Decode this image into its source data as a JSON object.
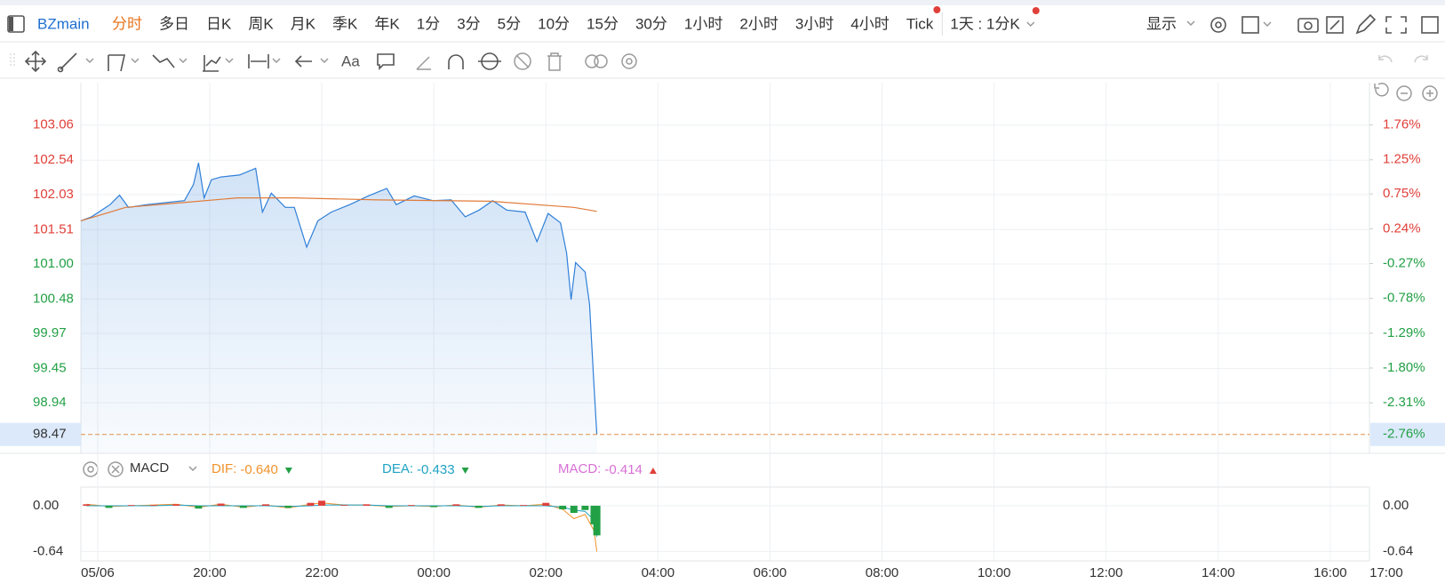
{
  "toolbar": {
    "symbol": "BZmain",
    "periods": [
      "分时",
      "多日",
      "日K",
      "周K",
      "月K",
      "季K",
      "年K",
      "1分",
      "3分",
      "5分",
      "10分",
      "15分",
      "30分",
      "1小时",
      "2小时",
      "3小时",
      "4小时",
      "Tick"
    ],
    "active_index": 0,
    "active_color": "#e8741c",
    "range": "1天 : 1分K",
    "display": "显示"
  },
  "drawing_tools": {
    "text_tool": "Aa"
  },
  "chart_data": [
    {
      "type": "line",
      "series": [
        {
          "color": "#2f7fd8",
          "area": true,
          "x": [
            -0.3,
            -0.11,
            0.22,
            0.39,
            0.55,
            0.88,
            1.21,
            1.55,
            1.71,
            1.8,
            1.9,
            2.03,
            2.2,
            2.53,
            2.82,
            2.94,
            3.1,
            3.35,
            3.51,
            3.73,
            3.93,
            4.17,
            4.5,
            4.83,
            5.16,
            5.33,
            5.65,
            5.98,
            6.31,
            6.56,
            6.81,
            7.05,
            7.3,
            7.63,
            7.84,
            8.04,
            8.26,
            8.37,
            8.45,
            8.53,
            8.7,
            8.78,
            8.86,
            8.91
          ],
          "values": [
            101.64,
            101.7,
            101.88,
            102.02,
            101.84,
            101.88,
            101.91,
            101.94,
            102.18,
            102.5,
            101.98,
            102.25,
            102.29,
            102.32,
            102.42,
            101.77,
            102.05,
            101.84,
            101.84,
            101.25,
            101.64,
            101.77,
            101.88,
            102.01,
            102.12,
            101.88,
            102.01,
            101.94,
            101.95,
            101.7,
            101.8,
            101.94,
            101.8,
            101.77,
            101.33,
            101.75,
            101.61,
            101.16,
            100.47,
            101.02,
            100.88,
            100.4,
            99.17,
            98.47
          ]
        },
        {
          "color": "#e07b39",
          "area": false,
          "x": [
            -0.3,
            0.5,
            1.5,
            2.5,
            3.5,
            5,
            7,
            8.5,
            8.91
          ],
          "values": [
            101.64,
            101.84,
            101.91,
            101.98,
            101.98,
            101.95,
            101.93,
            101.84,
            101.78
          ]
        }
      ],
      "xlim": [
        -0.3,
        22.7
      ],
      "xticks": [
        {
          "value": 0,
          "label": "05/06"
        },
        {
          "value": 2,
          "label": "20:00"
        },
        {
          "value": 4,
          "label": "22:00"
        },
        {
          "value": 6,
          "label": "00:00"
        },
        {
          "value": 8,
          "label": "02:00"
        },
        {
          "value": 10,
          "label": "04:00"
        },
        {
          "value": 12,
          "label": "06:00"
        },
        {
          "value": 14,
          "label": "08:00"
        },
        {
          "value": 16,
          "label": "10:00"
        },
        {
          "value": 18,
          "label": "12:00"
        },
        {
          "value": 20,
          "label": "14:00"
        },
        {
          "value": 22,
          "label": "16:00"
        },
        {
          "value": 23,
          "label": "17:00"
        }
      ],
      "ylim": [
        98.19,
        103.69
      ],
      "yticks": [
        103.06,
        102.54,
        102.03,
        {
          "value": 101.51,
          "label": "101.51"
        },
        {
          "value": 101,
          "label": "101.00"
        },
        100.48,
        99.97,
        99.45,
        98.94
      ],
      "y2lim": [
        -3.05,
        2.38
      ],
      "y2ticks": [
        {
          "value": 1.76,
          "label": "1.76%"
        },
        {
          "value": 1.25,
          "label": "1.25%"
        },
        {
          "value": 0.75,
          "label": "0.75%"
        },
        {
          "value": 0.24,
          "label": "0.24%"
        },
        {
          "value": -0.27,
          "label": "-0.27%"
        },
        {
          "value": -0.78,
          "label": "-0.78%"
        },
        {
          "value": -1.29,
          "label": "-1.29%"
        },
        {
          "value": -1.8,
          "label": "-1.80%"
        },
        {
          "value": -2.31,
          "label": "-2.31%"
        }
      ],
      "last": {
        "value": 98.47,
        "percent": {
          "value": -2.76,
          "label": "-2.76%"
        }
      },
      "up_color": "#e0403a",
      "down_color": "#22a045",
      "grid": true
    },
    {
      "type": "macd",
      "title": "MACD",
      "x": [
        -0.2,
        0.2,
        0.6,
        1.0,
        1.4,
        1.8,
        2.2,
        2.6,
        3.0,
        3.4,
        3.8,
        4.0,
        4.4,
        4.8,
        5.2,
        5.6,
        6.0,
        6.4,
        6.8,
        7.2,
        7.6,
        8.0,
        8.3,
        8.5,
        8.7,
        8.86,
        8.91
      ],
      "series": [
        {
          "name": "DIF:",
          "color": "#f0932b",
          "style": "line",
          "trend": "down",
          "last": {
            "value": -0.64,
            "label": "-0.640"
          },
          "values": [
            0.02,
            -0.01,
            0.0,
            0.01,
            0.02,
            -0.02,
            0.02,
            -0.02,
            0.01,
            -0.03,
            0.02,
            0.04,
            0.01,
            0.01,
            -0.01,
            0.0,
            -0.01,
            0.01,
            -0.02,
            0.01,
            0.0,
            0.02,
            -0.05,
            -0.18,
            -0.12,
            -0.35,
            -0.64
          ]
        },
        {
          "name": "DEA:",
          "color": "#1fa3c3",
          "style": "line",
          "trend": "down",
          "last": {
            "value": -0.433,
            "label": "-0.433"
          },
          "values": [
            0.0,
            0.0,
            0.0,
            0.0,
            0.01,
            0.0,
            0.0,
            0.0,
            0.0,
            -0.01,
            0.0,
            0.01,
            0.01,
            0.01,
            0.0,
            0.0,
            0.0,
            0.0,
            -0.01,
            0.0,
            0.0,
            0.0,
            -0.02,
            -0.06,
            -0.08,
            -0.2,
            -0.433
          ]
        },
        {
          "name": "MACD:",
          "color": "#d86fd6",
          "style": "bar",
          "trend": "up",
          "last": {
            "value": -0.414,
            "label": "-0.414"
          },
          "values": [
            0.02,
            -0.03,
            0.01,
            0.01,
            0.02,
            -0.04,
            0.03,
            -0.03,
            0.02,
            -0.03,
            0.04,
            0.07,
            0.01,
            0.02,
            -0.03,
            0.01,
            -0.02,
            0.02,
            -0.03,
            0.02,
            0.01,
            0.04,
            -0.05,
            -0.1,
            -0.06,
            -0.26,
            -0.414
          ]
        }
      ],
      "ylim": [
        -0.77,
        0.26
      ],
      "yticks": [
        {
          "value": 0,
          "label": "0.00"
        },
        -0.64
      ]
    }
  ]
}
